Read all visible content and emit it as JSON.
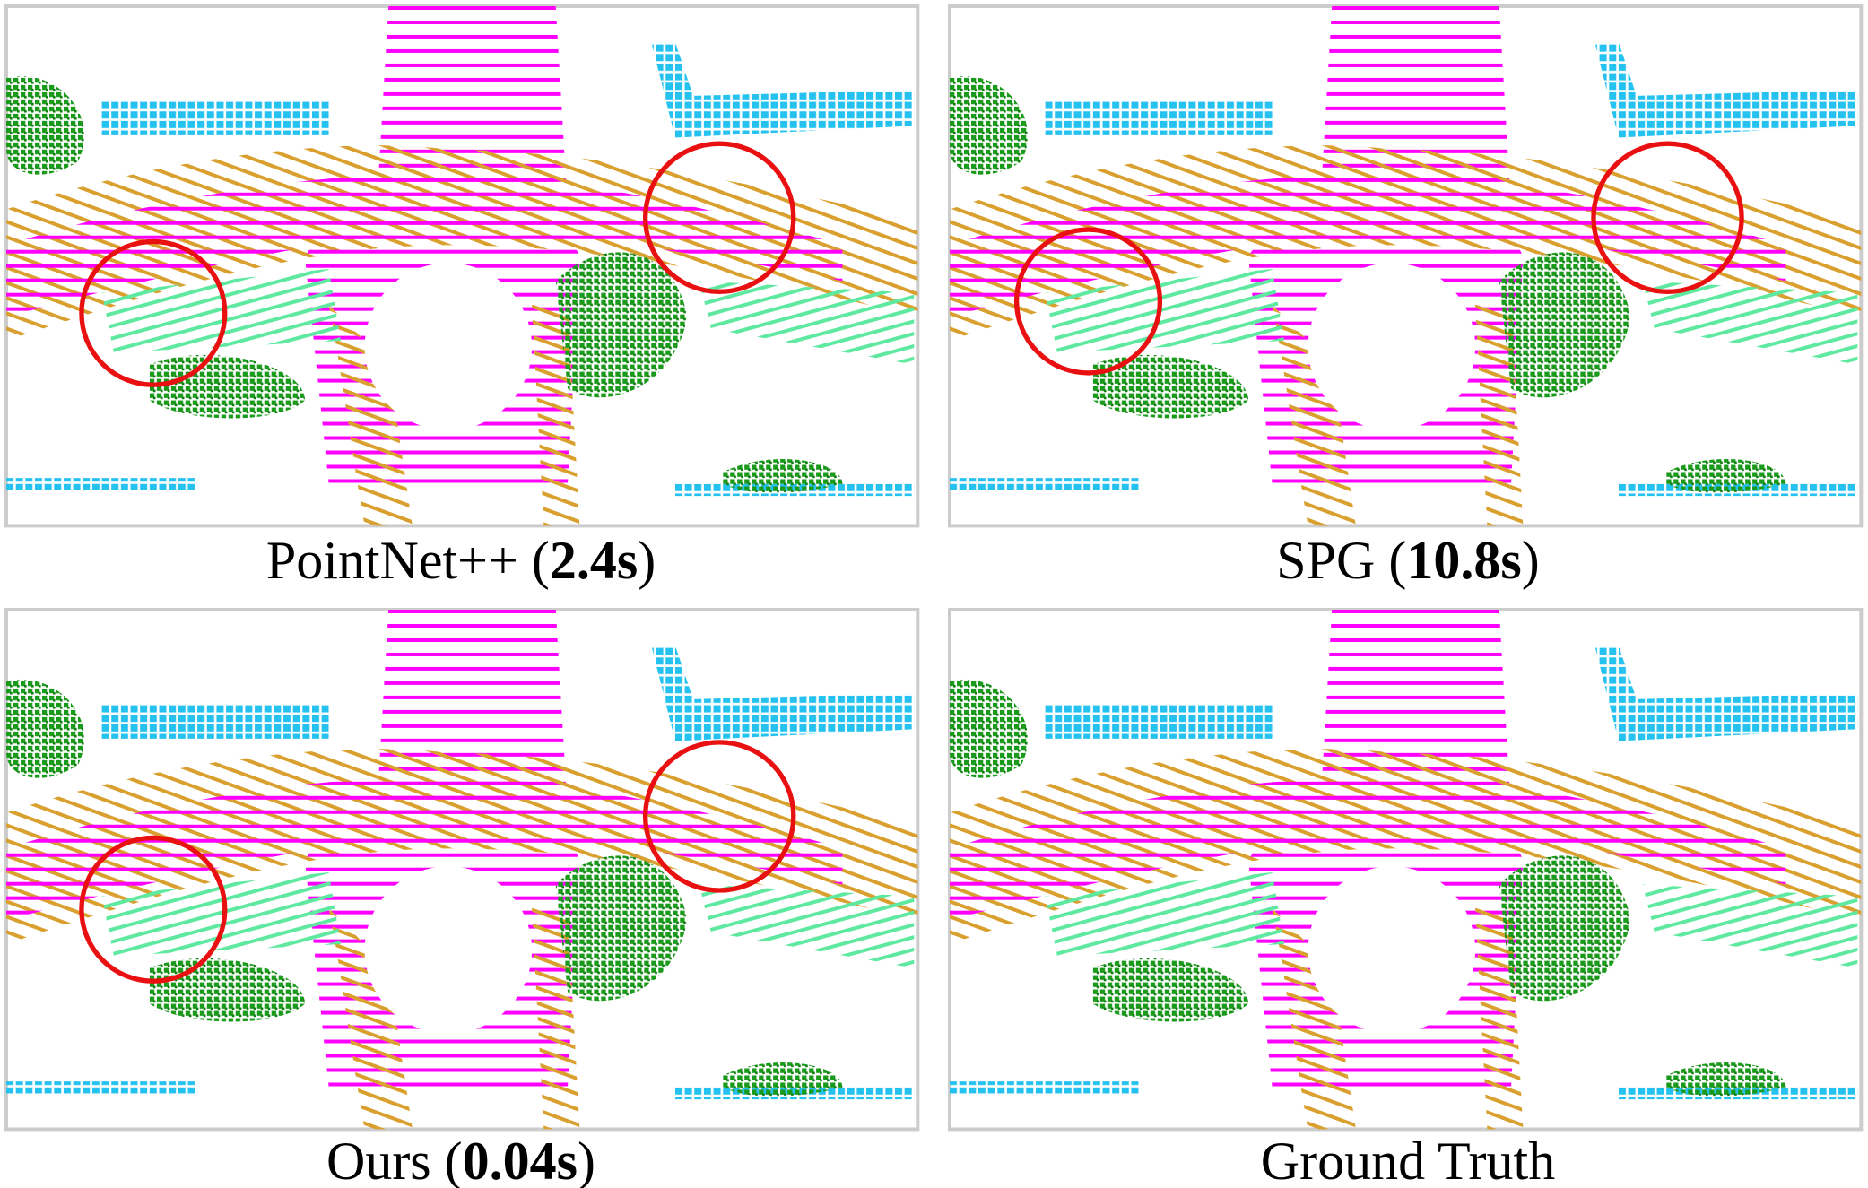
{
  "panels": [
    {
      "caption": {
        "prefix": "PointNet++ (",
        "bold": "2.4s",
        "suffix": ")"
      }
    },
    {
      "caption": {
        "prefix": "SPG (",
        "bold": "10.8s",
        "suffix": ")"
      }
    },
    {
      "caption": {
        "prefix": "Ours (",
        "bold": "0.04s",
        "suffix": ")"
      }
    },
    {
      "caption": {
        "prefix": "Ground Truth"
      }
    }
  ]
}
